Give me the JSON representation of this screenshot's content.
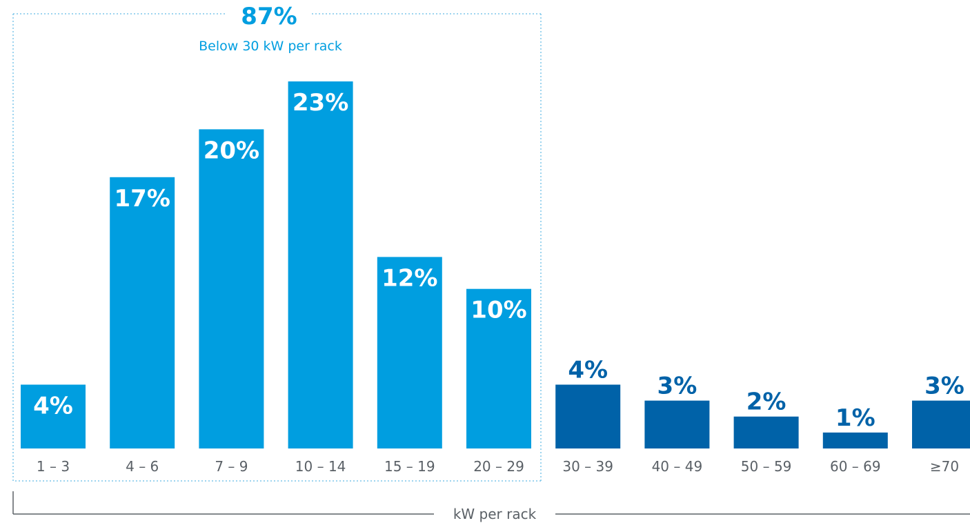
{
  "chart_data": {
    "type": "bar",
    "xlabel": "kW per rack",
    "categories": [
      "1 – 3",
      "4 – 6",
      "7 – 9",
      "10 – 14",
      "15 – 19",
      "20 – 29",
      "30 – 39",
      "40 – 49",
      "50 – 59",
      "60 – 69",
      "≥70"
    ],
    "values": [
      4,
      17,
      20,
      23,
      12,
      10,
      4,
      3,
      2,
      1,
      3
    ],
    "value_labels": [
      "4%",
      "17%",
      "20%",
      "23%",
      "12%",
      "10%",
      "4%",
      "3%",
      "2%",
      "1%",
      "3%"
    ],
    "ylim": [
      0,
      23
    ],
    "grid": false,
    "colors": {
      "below_30": "#009ee0",
      "above_30": "#0062a8",
      "axis_text": "#5a6066",
      "callout_border": "#7cc6ea"
    },
    "highlight_group": {
      "value": "87%",
      "label": "Below 30 kW per rack",
      "first_category_index": 0,
      "last_category_index": 5
    }
  }
}
